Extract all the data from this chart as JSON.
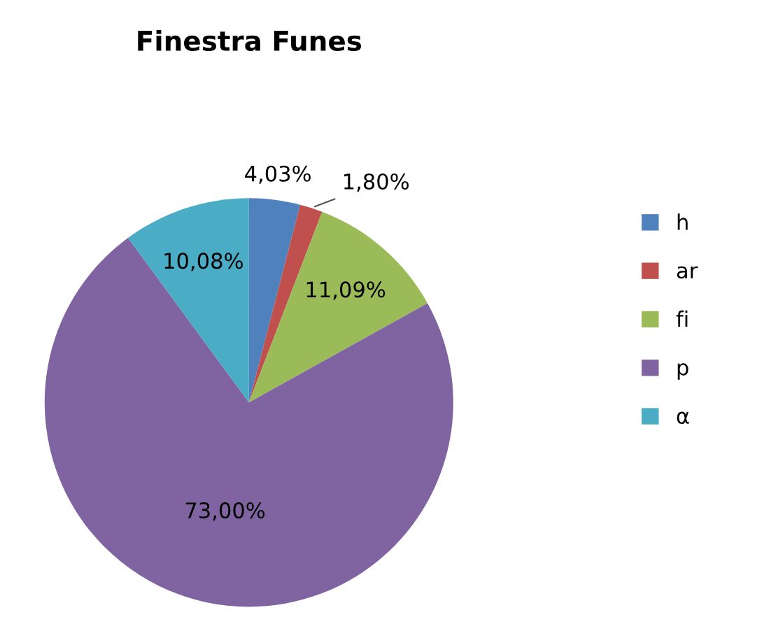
{
  "chart_data": {
    "type": "pie",
    "title": "Finestra Funes",
    "categories": [
      "h",
      "ar",
      "fi",
      "p",
      "α"
    ],
    "values": [
      4.03,
      1.8,
      11.09,
      73.0,
      10.08
    ],
    "value_labels": [
      "4,03%",
      "1,80%",
      "11,09%",
      "73,00%",
      "10,08%"
    ],
    "colors": [
      "#4f81bd",
      "#c0504d",
      "#9bbb59",
      "#8064a2",
      "#4bacc6"
    ],
    "legend": "right"
  }
}
